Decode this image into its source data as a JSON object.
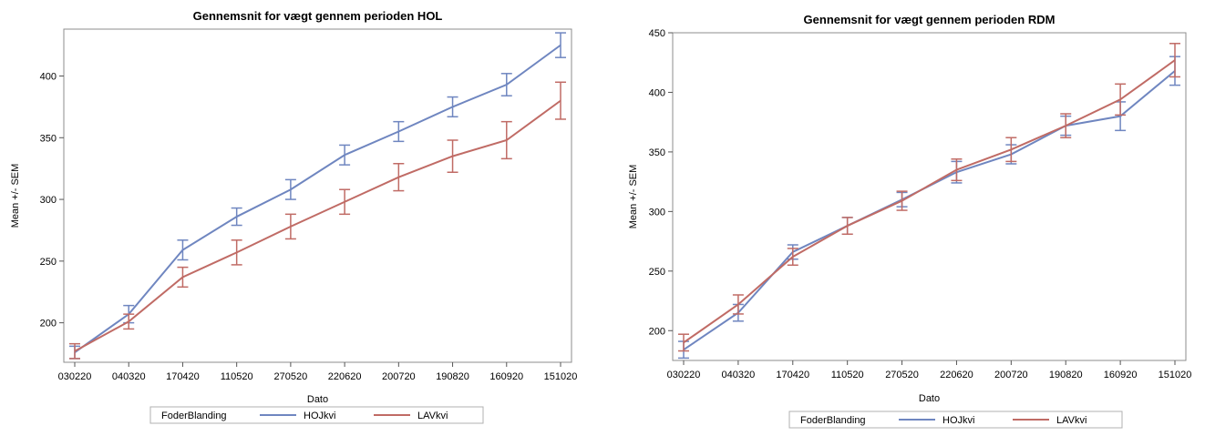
{
  "chart_data": [
    {
      "type": "line",
      "title": "Gennemsnit for vægt gennem perioden HOL",
      "xlabel": "Dato",
      "ylabel": "Mean +/- SEM",
      "categories": [
        "030220",
        "040320",
        "170420",
        "110520",
        "270520",
        "220620",
        "200720",
        "190820",
        "160920",
        "151020"
      ],
      "ylim": [
        168,
        438
      ],
      "yticks": [
        200,
        250,
        300,
        350,
        400
      ],
      "legend_title": "FoderBlanding",
      "legend_position": "bottom",
      "series": [
        {
          "name": "HOJkvi",
          "color": "#6f86c0",
          "values": [
            176,
            207,
            259,
            286,
            308,
            336,
            355,
            375,
            393,
            425
          ],
          "sem": [
            5,
            7,
            8,
            7,
            8,
            8,
            8,
            8,
            9,
            10
          ]
        },
        {
          "name": "LAVkvi",
          "color": "#c06b65",
          "values": [
            177,
            201,
            237,
            257,
            278,
            298,
            318,
            335,
            348,
            380
          ],
          "sem": [
            6,
            6,
            8,
            10,
            10,
            10,
            11,
            13,
            15,
            15
          ]
        }
      ]
    },
    {
      "type": "line",
      "title": "Gennemsnit for vægt gennem perioden RDM",
      "xlabel": "Dato",
      "ylabel": "Mean +/- SEM",
      "categories": [
        "030220",
        "040320",
        "170420",
        "110520",
        "270520",
        "220620",
        "200720",
        "190820",
        "160920",
        "151020"
      ],
      "ylim": [
        175,
        450
      ],
      "yticks": [
        200,
        250,
        300,
        350,
        400,
        450
      ],
      "legend_title": "FoderBlanding",
      "legend_position": "bottom",
      "series": [
        {
          "name": "HOJkvi",
          "color": "#6f86c0",
          "values": [
            184,
            215,
            266,
            288,
            310,
            333,
            348,
            372,
            380,
            418
          ],
          "sem": [
            7,
            7,
            6,
            7,
            6,
            9,
            8,
            8,
            12,
            12
          ]
        },
        {
          "name": "LAVkvi",
          "color": "#c06b65",
          "values": [
            190,
            222,
            262,
            288,
            309,
            335,
            352,
            372,
            394,
            427
          ],
          "sem": [
            7,
            8,
            7,
            7,
            8,
            9,
            10,
            10,
            13,
            14
          ]
        }
      ]
    }
  ]
}
